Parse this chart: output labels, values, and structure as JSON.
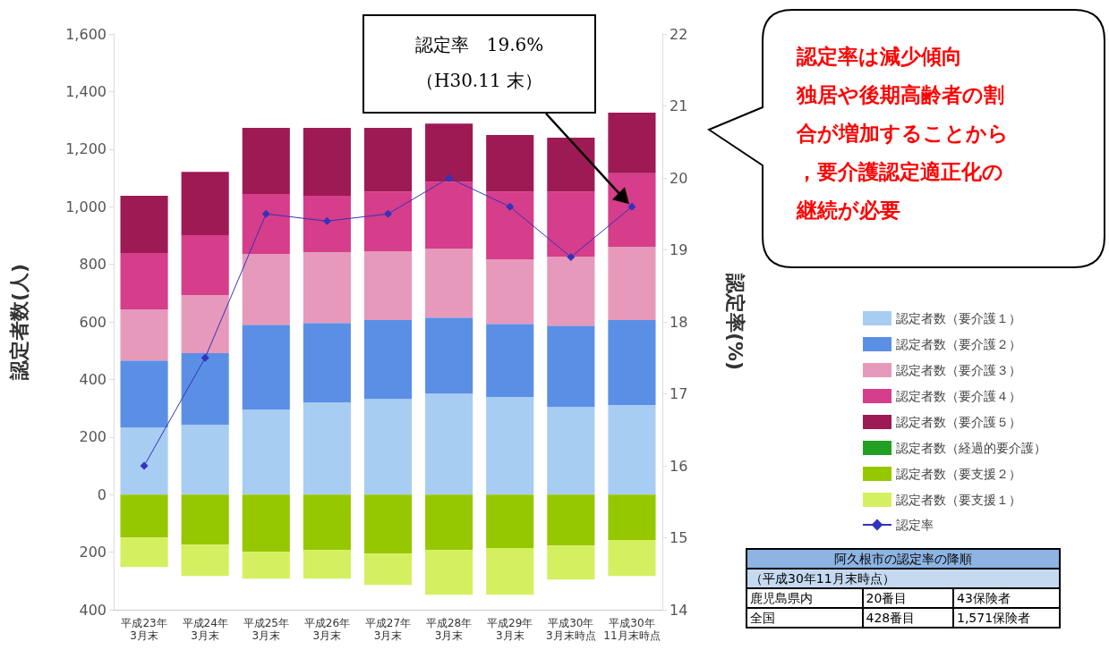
{
  "chart_data": [
    {
      "type": "bar",
      "stacked": true,
      "ylabel": "認定者数(人)",
      "y2label": "認定率(%)",
      "categories": [
        "平成23年\n3月末",
        "平成24年\n3月末",
        "平成25年\n3月末",
        "平成26年\n3月末",
        "平成27年\n3月末",
        "平成28年\n3月末",
        "平成29年\n3月末",
        "平成30年\n3月末時点",
        "平成30年\n11月末時点"
      ],
      "series": [
        {
          "name": "認定者数（要介護１）",
          "color": "#a8cdf2",
          "values": [
            233,
            242,
            295,
            320,
            332,
            351,
            339,
            304,
            311
          ]
        },
        {
          "name": "認定者数（要介護２）",
          "color": "#5b8fe6",
          "values": [
            233,
            249,
            295,
            276,
            274,
            264,
            254,
            283,
            295
          ]
        },
        {
          "name": "認定者数（要介護３）",
          "color": "#e699bb",
          "values": [
            177,
            202,
            246,
            246,
            239,
            239,
            224,
            239,
            255
          ]
        },
        {
          "name": "認定者数（要介護４）",
          "color": "#d63d8a",
          "values": [
            196,
            208,
            208,
            196,
            208,
            233,
            236,
            227,
            255
          ]
        },
        {
          "name": "認定者数（要介護５）",
          "color": "#9e1a55",
          "values": [
            199,
            220,
            230,
            236,
            221,
            202,
            196,
            187,
            211
          ]
        },
        {
          "name": "認定者数（経過的要介護）",
          "color": "#22a022",
          "values": [
            null,
            null,
            null,
            null,
            null,
            null,
            null,
            null,
            null
          ]
        },
        {
          "name": "認定者数（要支援２）",
          "color": "#96c800",
          "values": [
            -149,
            -174,
            -199,
            -193,
            -205,
            -193,
            -186,
            -177,
            -158
          ]
        },
        {
          "name": "認定者数（要支援１）",
          "color": "#d4f060",
          "values": [
            -103,
            -109,
            -93,
            -99,
            -109,
            -155,
            -162,
            -118,
            -125
          ]
        },
        {
          "name": "認定率",
          "type": "line",
          "axis": "y2",
          "color": "#3333bb",
          "values": [
            16.0,
            17.5,
            19.5,
            19.4,
            19.5,
            20.0,
            19.6,
            18.9,
            19.6
          ]
        }
      ],
      "ylim": [
        -400,
        1600
      ],
      "yticks": [
        {
          "value": -400,
          "label": "400"
        },
        {
          "value": -200,
          "label": "200"
        },
        0,
        {
          "value": 200,
          "label": "200"
        },
        {
          "value": 400,
          "label": "400"
        },
        {
          "value": 600,
          "label": "600"
        },
        {
          "value": 800,
          "label": "800"
        },
        {
          "value": 1000,
          "label": "1,000"
        },
        {
          "value": 1200,
          "label": "1,200"
        },
        {
          "value": 1400,
          "label": "1,400"
        },
        {
          "value": 1600,
          "label": "1,600"
        }
      ],
      "y2lim": [
        14,
        22
      ],
      "y2ticks": [
        14,
        15,
        16,
        17,
        18,
        19,
        20,
        21,
        22
      ],
      "grid": false,
      "legend": "right",
      "marker": "diamond",
      "line_style": "solid",
      "annotations": [
        "認定率　19.6%\n（H30.11 末）",
        "認定率は減少傾向",
        "独居や後期高齢者の割合が増加することから，要介護認定適正化の継続が必要"
      ]
    },
    {
      "type": "other",
      "title": "阿久根市の認定率の降順",
      "subtitle": "（平成30年11月末時点）",
      "annotations": [
        "鹿児島県内",
        "20番目",
        "43保険者",
        "全国",
        "428番目",
        "1,571保険者"
      ]
    }
  ]
}
